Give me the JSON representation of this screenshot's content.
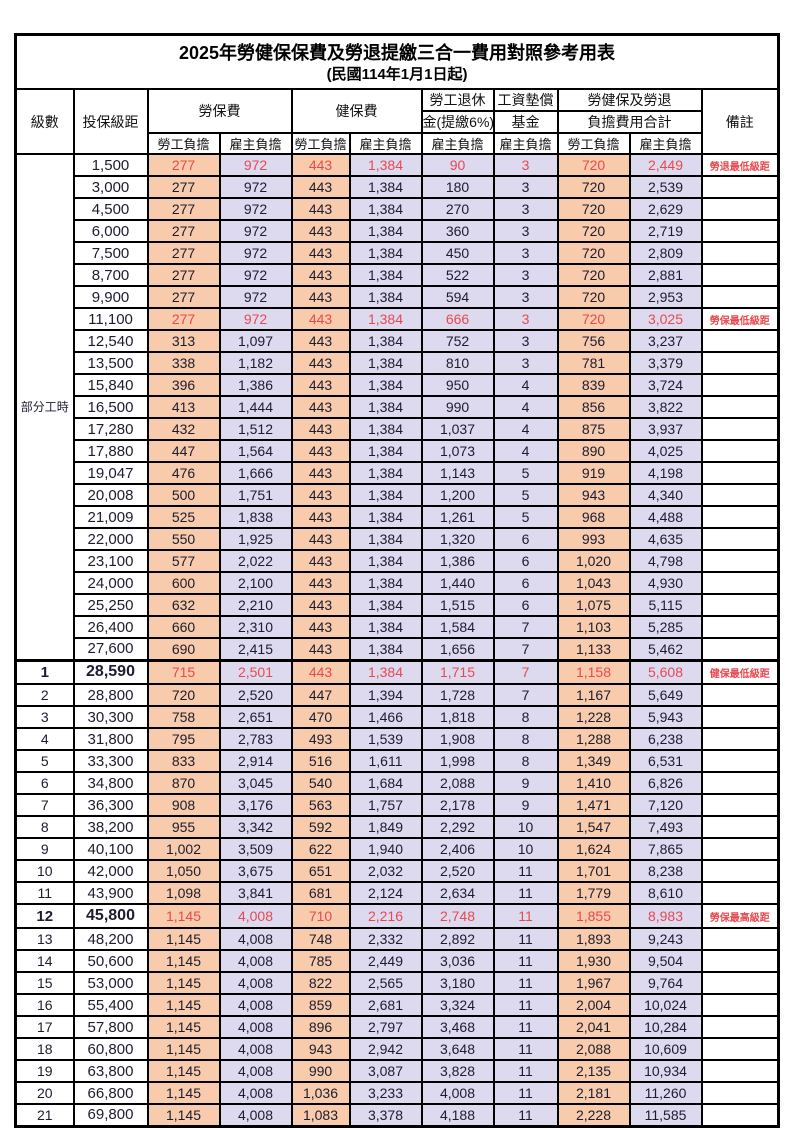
{
  "title": "2025年勞健保保費及勞退提繳三合一費用對照參考用表",
  "subtitle": "(民國114年1月1日起)",
  "columns": {
    "level": "級數",
    "bracket": "投保級距",
    "labor_insurance": "勞保費",
    "health_insurance": "健保費",
    "pension_line1": "勞工退休",
    "pension_line2": "金(提繳6%)",
    "wage_fund_line1": "工資墊償",
    "wage_fund_line2": "基金",
    "total_line1": "勞健保及勞退",
    "total_line2": "負擔費用合計",
    "remark": "備註",
    "employee_share": "勞工負擔",
    "employer_share": "雇主負擔"
  },
  "part_time_label": "部分工時",
  "part_time_row_span": 23,
  "colors": {
    "employee_bg": "#f8cbad",
    "employer_bg": "#dddaf0",
    "highlight_text": "#e8494f"
  },
  "rows": [
    {
      "level": "",
      "bracket": "1,500",
      "values": [
        "277",
        "972",
        "443",
        "1,384",
        "90",
        "3",
        "720",
        "2,449"
      ],
      "remark": "勞退最低級距",
      "red": true
    },
    {
      "level": "",
      "bracket": "3,000",
      "values": [
        "277",
        "972",
        "443",
        "1,384",
        "180",
        "3",
        "720",
        "2,539"
      ],
      "remark": ""
    },
    {
      "level": "",
      "bracket": "4,500",
      "values": [
        "277",
        "972",
        "443",
        "1,384",
        "270",
        "3",
        "720",
        "2,629"
      ],
      "remark": ""
    },
    {
      "level": "",
      "bracket": "6,000",
      "values": [
        "277",
        "972",
        "443",
        "1,384",
        "360",
        "3",
        "720",
        "2,719"
      ],
      "remark": ""
    },
    {
      "level": "",
      "bracket": "7,500",
      "values": [
        "277",
        "972",
        "443",
        "1,384",
        "450",
        "3",
        "720",
        "2,809"
      ],
      "remark": ""
    },
    {
      "level": "",
      "bracket": "8,700",
      "values": [
        "277",
        "972",
        "443",
        "1,384",
        "522",
        "3",
        "720",
        "2,881"
      ],
      "remark": ""
    },
    {
      "level": "",
      "bracket": "9,900",
      "values": [
        "277",
        "972",
        "443",
        "1,384",
        "594",
        "3",
        "720",
        "2,953"
      ],
      "remark": ""
    },
    {
      "level": "",
      "bracket": "11,100",
      "values": [
        "277",
        "972",
        "443",
        "1,384",
        "666",
        "3",
        "720",
        "3,025"
      ],
      "remark": "勞保最低級距",
      "red": true
    },
    {
      "level": "",
      "bracket": "12,540",
      "values": [
        "313",
        "1,097",
        "443",
        "1,384",
        "752",
        "3",
        "756",
        "3,237"
      ],
      "remark": ""
    },
    {
      "level": "",
      "bracket": "13,500",
      "values": [
        "338",
        "1,182",
        "443",
        "1,384",
        "810",
        "3",
        "781",
        "3,379"
      ],
      "remark": ""
    },
    {
      "level": "",
      "bracket": "15,840",
      "values": [
        "396",
        "1,386",
        "443",
        "1,384",
        "950",
        "4",
        "839",
        "3,724"
      ],
      "remark": ""
    },
    {
      "level": "",
      "bracket": "16,500",
      "values": [
        "413",
        "1,444",
        "443",
        "1,384",
        "990",
        "4",
        "856",
        "3,822"
      ],
      "remark": ""
    },
    {
      "level": "",
      "bracket": "17,280",
      "values": [
        "432",
        "1,512",
        "443",
        "1,384",
        "1,037",
        "4",
        "875",
        "3,937"
      ],
      "remark": ""
    },
    {
      "level": "",
      "bracket": "17,880",
      "values": [
        "447",
        "1,564",
        "443",
        "1,384",
        "1,073",
        "4",
        "890",
        "4,025"
      ],
      "remark": ""
    },
    {
      "level": "",
      "bracket": "19,047",
      "values": [
        "476",
        "1,666",
        "443",
        "1,384",
        "1,143",
        "5",
        "919",
        "4,198"
      ],
      "remark": ""
    },
    {
      "level": "",
      "bracket": "20,008",
      "values": [
        "500",
        "1,751",
        "443",
        "1,384",
        "1,200",
        "5",
        "943",
        "4,340"
      ],
      "remark": ""
    },
    {
      "level": "",
      "bracket": "21,009",
      "values": [
        "525",
        "1,838",
        "443",
        "1,384",
        "1,261",
        "5",
        "968",
        "4,488"
      ],
      "remark": ""
    },
    {
      "level": "",
      "bracket": "22,000",
      "values": [
        "550",
        "1,925",
        "443",
        "1,384",
        "1,320",
        "6",
        "993",
        "4,635"
      ],
      "remark": ""
    },
    {
      "level": "",
      "bracket": "23,100",
      "values": [
        "577",
        "2,022",
        "443",
        "1,384",
        "1,386",
        "6",
        "1,020",
        "4,798"
      ],
      "remark": ""
    },
    {
      "level": "",
      "bracket": "24,000",
      "values": [
        "600",
        "2,100",
        "443",
        "1,384",
        "1,440",
        "6",
        "1,043",
        "4,930"
      ],
      "remark": ""
    },
    {
      "level": "",
      "bracket": "25,250",
      "values": [
        "632",
        "2,210",
        "443",
        "1,384",
        "1,515",
        "6",
        "1,075",
        "5,115"
      ],
      "remark": ""
    },
    {
      "level": "",
      "bracket": "26,400",
      "values": [
        "660",
        "2,310",
        "443",
        "1,384",
        "1,584",
        "7",
        "1,103",
        "5,285"
      ],
      "remark": ""
    },
    {
      "level": "",
      "bracket": "27,600",
      "values": [
        "690",
        "2,415",
        "443",
        "1,384",
        "1,656",
        "7",
        "1,133",
        "5,462"
      ],
      "remark": ""
    },
    {
      "level": "1",
      "bracket": "28,590",
      "values": [
        "715",
        "2,501",
        "443",
        "1,384",
        "1,715",
        "7",
        "1,158",
        "5,608"
      ],
      "remark": "健保最低級距",
      "red": true,
      "milestone": true
    },
    {
      "level": "2",
      "bracket": "28,800",
      "values": [
        "720",
        "2,520",
        "447",
        "1,394",
        "1,728",
        "7",
        "1,167",
        "5,649"
      ],
      "remark": ""
    },
    {
      "level": "3",
      "bracket": "30,300",
      "values": [
        "758",
        "2,651",
        "470",
        "1,466",
        "1,818",
        "8",
        "1,228",
        "5,943"
      ],
      "remark": ""
    },
    {
      "level": "4",
      "bracket": "31,800",
      "values": [
        "795",
        "2,783",
        "493",
        "1,539",
        "1,908",
        "8",
        "1,288",
        "6,238"
      ],
      "remark": ""
    },
    {
      "level": "5",
      "bracket": "33,300",
      "values": [
        "833",
        "2,914",
        "516",
        "1,611",
        "1,998",
        "8",
        "1,349",
        "6,531"
      ],
      "remark": ""
    },
    {
      "level": "6",
      "bracket": "34,800",
      "values": [
        "870",
        "3,045",
        "540",
        "1,684",
        "2,088",
        "9",
        "1,410",
        "6,826"
      ],
      "remark": ""
    },
    {
      "level": "7",
      "bracket": "36,300",
      "values": [
        "908",
        "3,176",
        "563",
        "1,757",
        "2,178",
        "9",
        "1,471",
        "7,120"
      ],
      "remark": ""
    },
    {
      "level": "8",
      "bracket": "38,200",
      "values": [
        "955",
        "3,342",
        "592",
        "1,849",
        "2,292",
        "10",
        "1,547",
        "7,493"
      ],
      "remark": ""
    },
    {
      "level": "9",
      "bracket": "40,100",
      "values": [
        "1,002",
        "3,509",
        "622",
        "1,940",
        "2,406",
        "10",
        "1,624",
        "7,865"
      ],
      "remark": ""
    },
    {
      "level": "10",
      "bracket": "42,000",
      "values": [
        "1,050",
        "3,675",
        "651",
        "2,032",
        "2,520",
        "11",
        "1,701",
        "8,238"
      ],
      "remark": ""
    },
    {
      "level": "11",
      "bracket": "43,900",
      "values": [
        "1,098",
        "3,841",
        "681",
        "2,124",
        "2,634",
        "11",
        "1,779",
        "8,610"
      ],
      "remark": ""
    },
    {
      "level": "12",
      "bracket": "45,800",
      "values": [
        "1,145",
        "4,008",
        "710",
        "2,216",
        "2,748",
        "11",
        "1,855",
        "8,983"
      ],
      "remark": "勞保最高級距",
      "red": true,
      "milestone": true
    },
    {
      "level": "13",
      "bracket": "48,200",
      "values": [
        "1,145",
        "4,008",
        "748",
        "2,332",
        "2,892",
        "11",
        "1,893",
        "9,243"
      ],
      "remark": ""
    },
    {
      "level": "14",
      "bracket": "50,600",
      "values": [
        "1,145",
        "4,008",
        "785",
        "2,449",
        "3,036",
        "11",
        "1,930",
        "9,504"
      ],
      "remark": ""
    },
    {
      "level": "15",
      "bracket": "53,000",
      "values": [
        "1,145",
        "4,008",
        "822",
        "2,565",
        "3,180",
        "11",
        "1,967",
        "9,764"
      ],
      "remark": ""
    },
    {
      "level": "16",
      "bracket": "55,400",
      "values": [
        "1,145",
        "4,008",
        "859",
        "2,681",
        "3,324",
        "11",
        "2,004",
        "10,024"
      ],
      "remark": ""
    },
    {
      "level": "17",
      "bracket": "57,800",
      "values": [
        "1,145",
        "4,008",
        "896",
        "2,797",
        "3,468",
        "11",
        "2,041",
        "10,284"
      ],
      "remark": ""
    },
    {
      "level": "18",
      "bracket": "60,800",
      "values": [
        "1,145",
        "4,008",
        "943",
        "2,942",
        "3,648",
        "11",
        "2,088",
        "10,609"
      ],
      "remark": ""
    },
    {
      "level": "19",
      "bracket": "63,800",
      "values": [
        "1,145",
        "4,008",
        "990",
        "3,087",
        "3,828",
        "11",
        "2,135",
        "10,934"
      ],
      "remark": ""
    },
    {
      "level": "20",
      "bracket": "66,800",
      "values": [
        "1,145",
        "4,008",
        "1,036",
        "3,233",
        "4,008",
        "11",
        "2,181",
        "11,260"
      ],
      "remark": ""
    },
    {
      "level": "21",
      "bracket": "69,800",
      "values": [
        "1,145",
        "4,008",
        "1,083",
        "3,378",
        "4,188",
        "11",
        "2,228",
        "11,585"
      ],
      "remark": ""
    }
  ]
}
